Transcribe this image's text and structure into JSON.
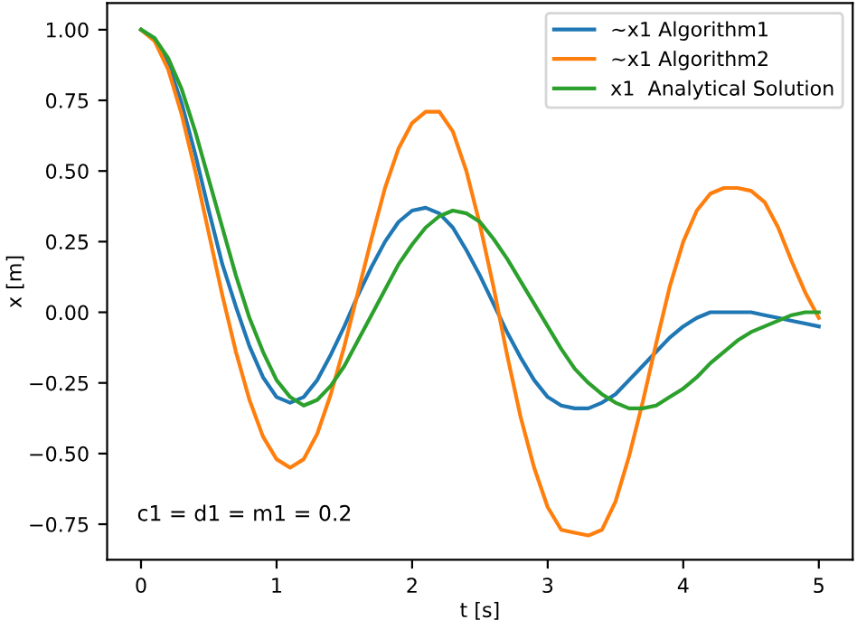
{
  "chart_data": {
    "type": "line",
    "xlabel": "t [s]",
    "ylabel": "x [m]",
    "x": [
      0,
      0.1,
      0.2,
      0.3,
      0.4,
      0.5,
      0.6,
      0.7,
      0.8,
      0.9,
      1.0,
      1.1,
      1.2,
      1.3,
      1.4,
      1.5,
      1.6,
      1.7,
      1.8,
      1.9,
      2.0,
      2.1,
      2.2,
      2.3,
      2.4,
      2.5,
      2.6,
      2.7,
      2.8,
      2.9,
      3.0,
      3.1,
      3.2,
      3.3,
      3.4,
      3.5,
      3.6,
      3.7,
      3.8,
      3.9,
      4.0,
      4.1,
      4.2,
      4.3,
      4.4,
      4.5,
      4.6,
      4.7,
      4.8,
      4.9,
      5.0
    ],
    "series": [
      {
        "name": "~x1 Algorithm1",
        "color": "#1f77b4",
        "values": [
          1.0,
          0.97,
          0.88,
          0.74,
          0.56,
          0.36,
          0.17,
          0.02,
          -0.12,
          -0.23,
          -0.3,
          -0.32,
          -0.3,
          -0.24,
          -0.15,
          -0.05,
          0.06,
          0.16,
          0.25,
          0.32,
          0.36,
          0.37,
          0.35,
          0.3,
          0.22,
          0.13,
          0.03,
          -0.07,
          -0.16,
          -0.24,
          -0.3,
          -0.33,
          -0.34,
          -0.34,
          -0.32,
          -0.29,
          -0.24,
          -0.19,
          -0.14,
          -0.09,
          -0.05,
          -0.02,
          0.0,
          0.0,
          0.0,
          0.0,
          -0.01,
          -0.02,
          -0.03,
          -0.04,
          -0.05
        ]
      },
      {
        "name": "~x1 Algorithm2",
        "color": "#ff7f0e",
        "values": [
          1.0,
          0.96,
          0.86,
          0.7,
          0.5,
          0.28,
          0.06,
          -0.14,
          -0.31,
          -0.44,
          -0.52,
          -0.55,
          -0.52,
          -0.43,
          -0.29,
          -0.12,
          0.07,
          0.26,
          0.44,
          0.58,
          0.67,
          0.71,
          0.71,
          0.64,
          0.5,
          0.31,
          0.09,
          -0.15,
          -0.37,
          -0.55,
          -0.69,
          -0.77,
          -0.78,
          -0.79,
          -0.77,
          -0.67,
          -0.51,
          -0.32,
          -0.11,
          0.09,
          0.25,
          0.36,
          0.42,
          0.44,
          0.44,
          0.43,
          0.39,
          0.3,
          0.18,
          0.07,
          -0.02
        ]
      },
      {
        "name": "x1  Analytical Solution",
        "color": "#2ca02c",
        "values": [
          1.0,
          0.97,
          0.9,
          0.79,
          0.64,
          0.47,
          0.3,
          0.13,
          -0.02,
          -0.14,
          -0.24,
          -0.3,
          -0.33,
          -0.31,
          -0.26,
          -0.19,
          -0.1,
          -0.01,
          0.08,
          0.17,
          0.24,
          0.3,
          0.34,
          0.36,
          0.35,
          0.32,
          0.26,
          0.19,
          0.11,
          0.03,
          -0.05,
          -0.13,
          -0.2,
          -0.25,
          -0.29,
          -0.32,
          -0.34,
          -0.34,
          -0.33,
          -0.3,
          -0.27,
          -0.23,
          -0.18,
          -0.14,
          -0.1,
          -0.07,
          -0.05,
          -0.03,
          -0.01,
          0.0,
          0.0
        ]
      }
    ],
    "xlim": [
      -0.25,
      5.25
    ],
    "xticks": [
      0,
      1,
      2,
      3,
      4,
      5
    ],
    "ylim": [
      -0.876,
      1.094
    ],
    "yticks": [
      {
        "value": -0.75,
        "label": "−0.75"
      },
      {
        "value": -0.5,
        "label": "−0.50"
      },
      {
        "value": -0.25,
        "label": "−0.25"
      },
      {
        "value": 0,
        "label": "0.00"
      },
      {
        "value": 0.25,
        "label": "0.25"
      },
      {
        "value": 0.5,
        "label": "0.50"
      },
      {
        "value": 0.75,
        "label": "0.75"
      },
      {
        "value": 1.0,
        "label": "1.00"
      }
    ],
    "annotations": [
      "c1 = d1 = m1 = 0.2"
    ],
    "legend": "top right",
    "grid": false,
    "marker": "none",
    "line_style": "solid"
  }
}
